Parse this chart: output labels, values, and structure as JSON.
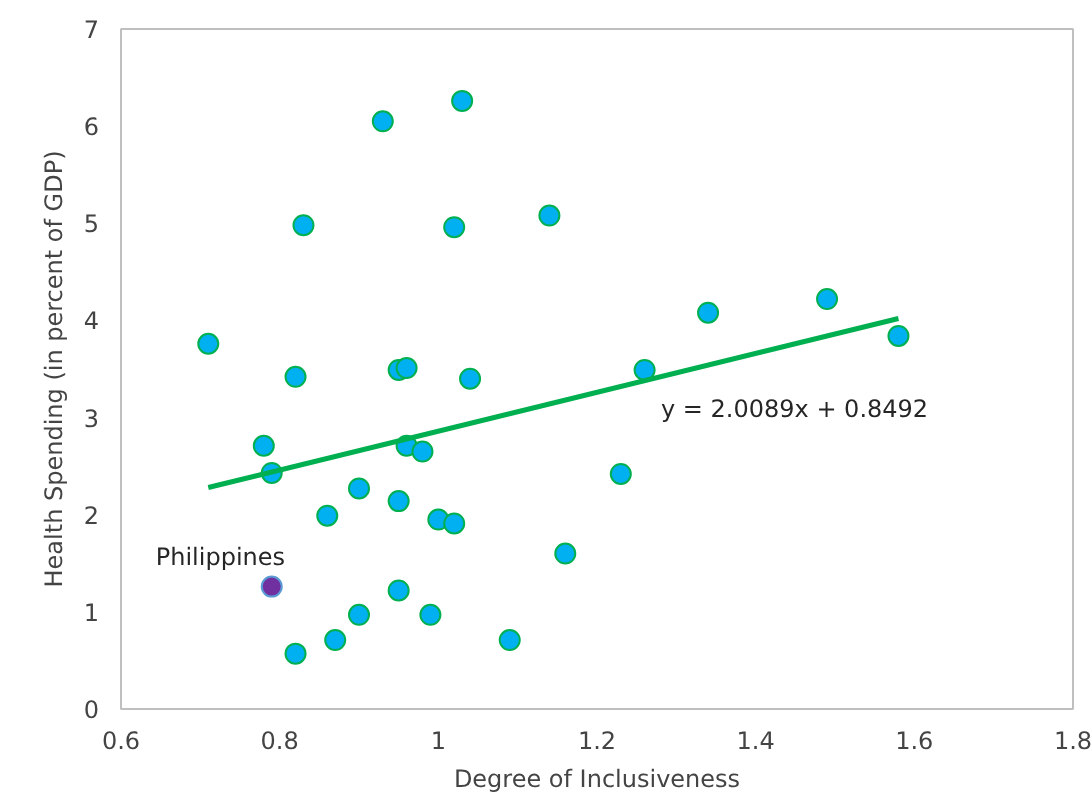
{
  "chart_data": {
    "type": "scatter",
    "xlabel": "Degree of Inclusiveness",
    "ylabel": "Health Spending (in percent of GDP)",
    "xlim": [
      0.6,
      1.8
    ],
    "ylim": [
      0,
      7
    ],
    "xticks": [
      {
        "value": 0.6,
        "label": "0.6"
      },
      {
        "value": 0.8,
        "label": "0.8"
      },
      {
        "value": 1.0,
        "label": "1"
      },
      {
        "value": 1.2,
        "label": "1.2"
      },
      {
        "value": 1.4,
        "label": "1.4"
      },
      {
        "value": 1.6,
        "label": "1.6"
      },
      {
        "value": 1.8,
        "label": "1.8"
      }
    ],
    "yticks": [
      0,
      1,
      2,
      3,
      4,
      5,
      6,
      7
    ],
    "grid": false,
    "legend": false,
    "series": [
      {
        "marker": "circle",
        "color": "#00b0f0",
        "x": [
          1.03,
          0.93,
          0.83,
          1.02,
          1.14,
          0.71,
          0.82,
          0.95,
          0.96,
          1.04,
          1.34,
          1.49,
          1.58,
          1.26,
          0.78,
          0.79,
          0.96,
          0.98,
          0.86,
          0.9,
          0.95,
          1.0,
          1.02,
          1.23,
          1.16,
          0.95,
          0.9,
          0.87,
          0.82,
          0.99,
          1.09
        ],
        "values": [
          6.26,
          6.05,
          4.98,
          4.96,
          5.08,
          3.76,
          3.42,
          3.49,
          3.51,
          3.4,
          4.08,
          4.22,
          3.84,
          3.49,
          2.71,
          2.43,
          2.71,
          2.65,
          1.99,
          2.27,
          2.14,
          1.95,
          1.91,
          2.42,
          1.6,
          1.22,
          0.97,
          0.71,
          0.57,
          0.97,
          0.71
        ]
      },
      {
        "name": "Philippines",
        "marker": "circle",
        "color": "#7030a0",
        "x": [
          0.79
        ],
        "values": [
          1.26
        ]
      },
      {
        "type": "line",
        "marker": "none",
        "color": "#00b050",
        "x": [
          0.71,
          1.58
        ],
        "values": [
          2.28,
          4.02
        ]
      }
    ],
    "annotations": [
      "y = 2.0089x + 0.8492"
    ]
  }
}
